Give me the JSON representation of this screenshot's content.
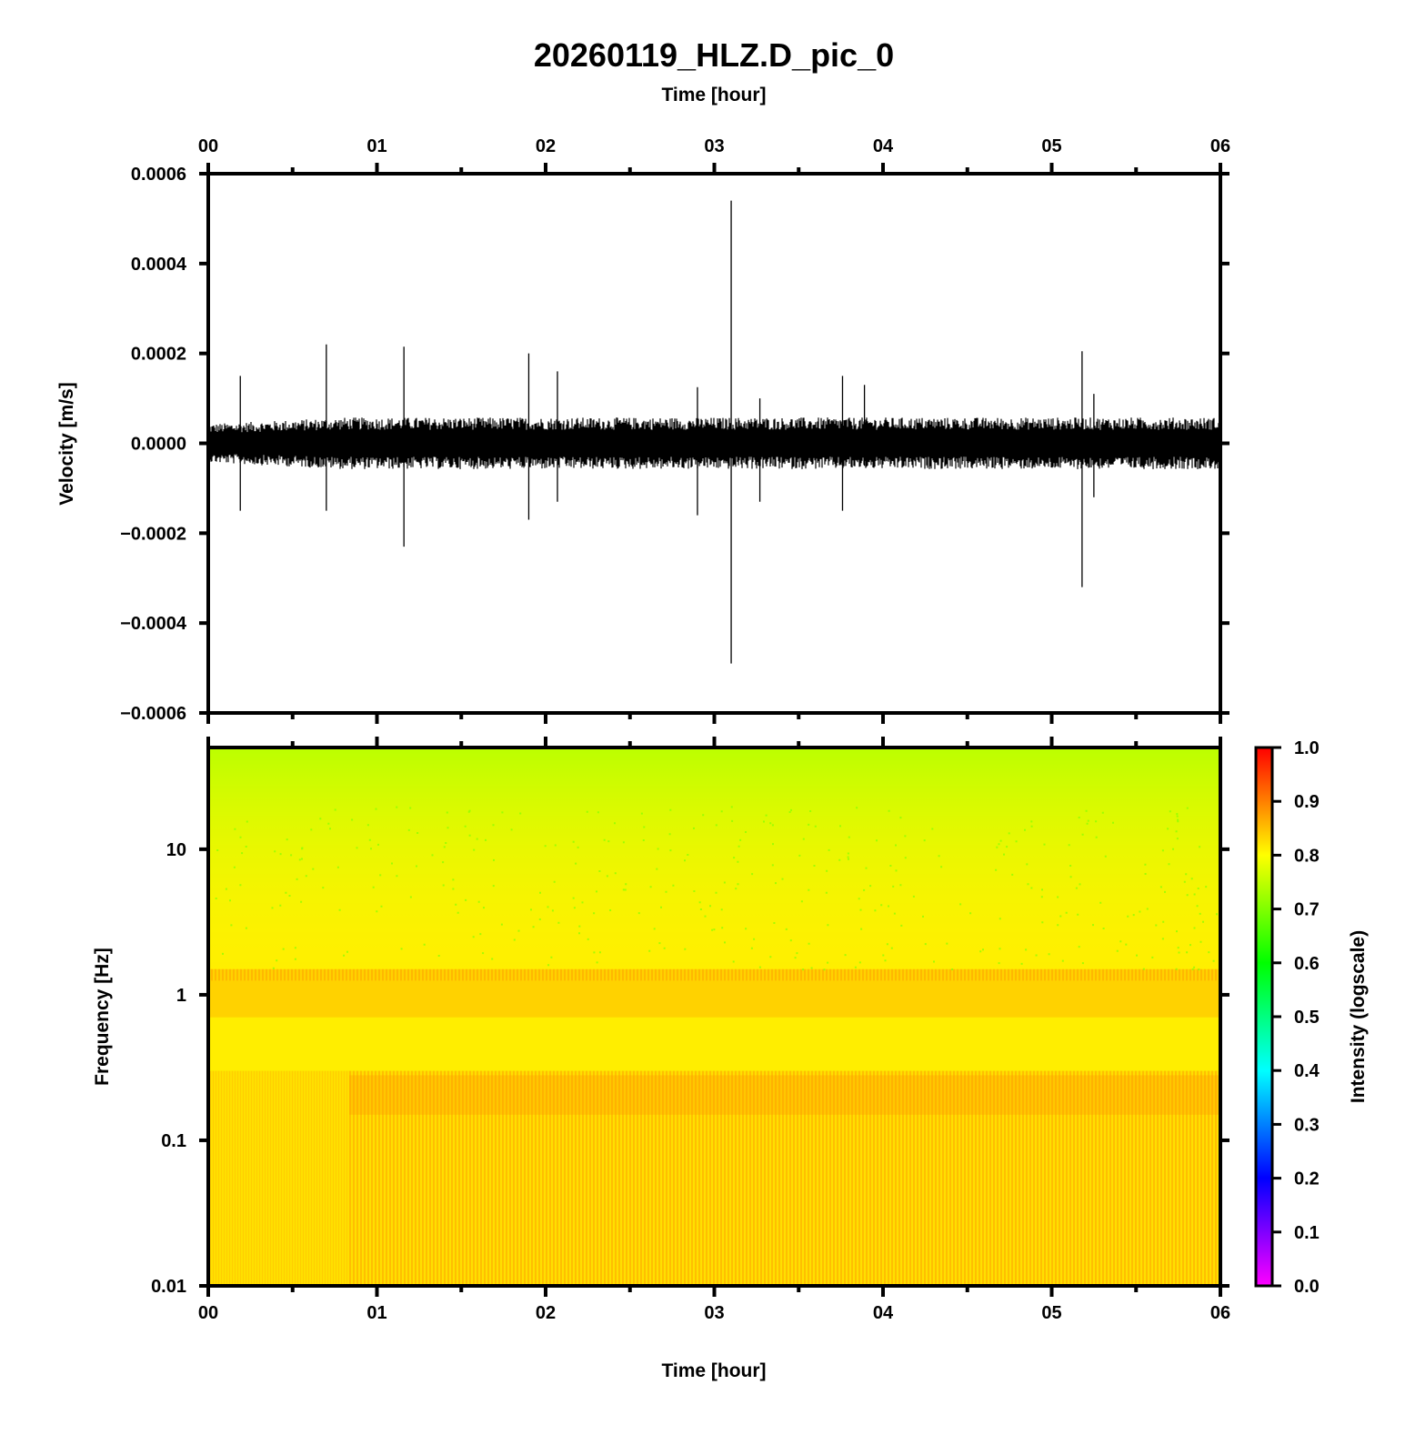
{
  "chart_data": [
    {
      "type": "line",
      "title": "20260119_HLZ.D_pic_0",
      "xlabel": "Time [hour]",
      "ylabel": "Velocity [m/s]",
      "xlim": [
        0,
        6
      ],
      "ylim": [
        -0.0006,
        0.0006
      ],
      "x_ticks": [
        "00",
        "01",
        "02",
        "03",
        "04",
        "05",
        "06"
      ],
      "y_ticks": [
        "0.0006",
        "0.0004",
        "0.0002",
        "0.0000",
        "−0.0002",
        "−0.0004",
        "−0.0006"
      ],
      "grid": false,
      "background_noise_amplitude": 5e-05,
      "series": [
        {
          "color": "#000000",
          "spikes": [
            {
              "x": 0.19,
              "y_max": 0.00015,
              "y_min": -0.00015
            },
            {
              "x": 0.7,
              "y_max": 0.00022,
              "y_min": -0.00015
            },
            {
              "x": 1.16,
              "y_max": 0.000215,
              "y_min": -0.00023
            },
            {
              "x": 1.9,
              "y_max": 0.0002,
              "y_min": -0.00017
            },
            {
              "x": 2.07,
              "y_max": 0.00016,
              "y_min": -0.00013
            },
            {
              "x": 2.9,
              "y_max": 0.000125,
              "y_min": -0.00016
            },
            {
              "x": 3.1,
              "y_max": 0.00054,
              "y_min": -0.00049
            },
            {
              "x": 3.27,
              "y_max": 0.0001,
              "y_min": -0.00013
            },
            {
              "x": 3.76,
              "y_max": 0.00015,
              "y_min": -0.00015
            },
            {
              "x": 3.89,
              "y_max": 0.00013,
              "y_min": -5e-05
            },
            {
              "x": 5.18,
              "y_max": 0.000205,
              "y_min": -0.00032
            },
            {
              "x": 5.25,
              "y_max": 0.00011,
              "y_min": -0.00012
            }
          ]
        }
      ]
    },
    {
      "type": "heatmap",
      "xlabel": "Time [hour]",
      "ylabel": "Frequency [Hz]",
      "xlim": [
        0,
        6
      ],
      "ylim": [
        0.01,
        50
      ],
      "yscale": "log",
      "x_ticks": [
        "00",
        "01",
        "02",
        "03",
        "04",
        "05",
        "06"
      ],
      "y_ticks": [
        "10",
        "1",
        "0.1",
        "0.01"
      ],
      "colorbar": {
        "label": "Intensity (logscale)",
        "range": [
          0.0,
          1.0
        ],
        "ticks": [
          "1.0",
          "0.9",
          "0.8",
          "0.7",
          "0.6",
          "0.5",
          "0.4",
          "0.3",
          "0.2",
          "0.1",
          "0.0"
        ],
        "colormap": [
          "#ff00ff",
          "#8000ff",
          "#0000ff",
          "#0080ff",
          "#00ffff",
          "#00ff80",
          "#00ff00",
          "#80ff00",
          "#ffff00",
          "#ff8000",
          "#ff0000"
        ]
      },
      "intensity_bands": [
        {
          "f_min": 0.01,
          "f_max": 0.3,
          "intensity": 0.86
        },
        {
          "f_min": 0.3,
          "f_max": 1.5,
          "intensity": 0.82
        },
        {
          "f_min": 1.5,
          "f_max": 10,
          "intensity": 0.78
        },
        {
          "f_min": 10,
          "f_max": 50,
          "intensity": 0.74
        }
      ]
    }
  ]
}
